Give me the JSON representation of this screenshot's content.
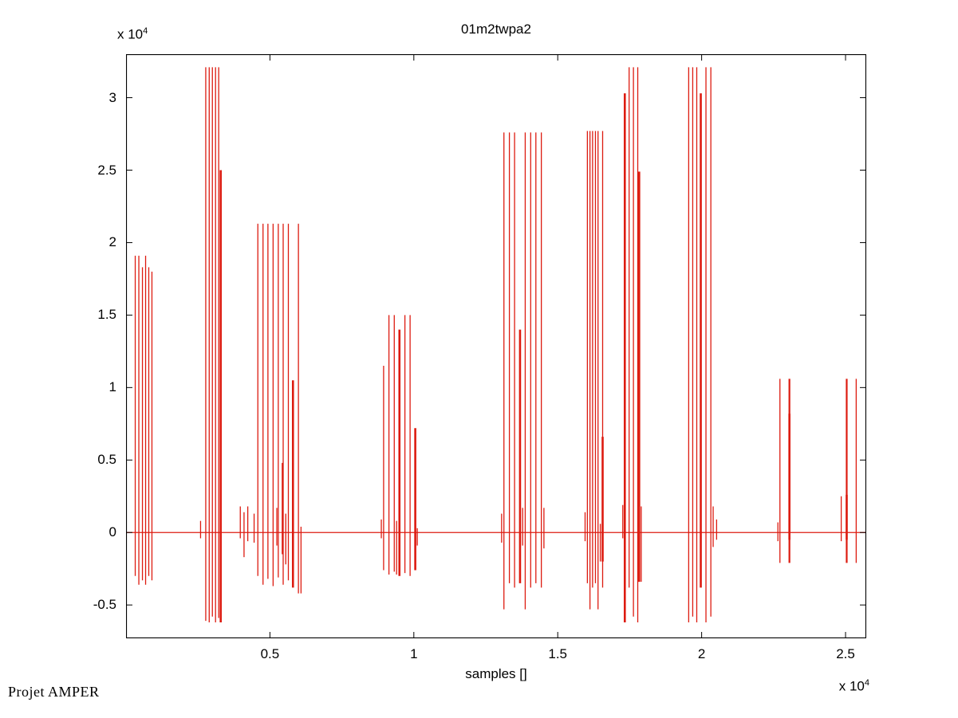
{
  "chart": {
    "title": "01m2twpa2",
    "xlabel": "samples []",
    "x_exp": {
      "prefix": "x 10",
      "exp": "4"
    },
    "y_exp": {
      "prefix": "x 10",
      "exp": "4"
    },
    "watermark": "Projet AMPER"
  },
  "colors": {
    "line": "#dd1b10",
    "axis": "#000000",
    "background": "#ffffff"
  },
  "chart_data": {
    "type": "line",
    "title": "01m2twpa2",
    "xlabel": "samples []",
    "ylabel": "",
    "x_unit_scale": "x 10^4",
    "y_unit_scale": "x 10^4",
    "xlim": [
      0,
      25720
    ],
    "ylim": [
      -7300,
      33000
    ],
    "grid": false,
    "legend": null,
    "x_ticks": [
      5000,
      10000,
      15000,
      20000,
      25000
    ],
    "x_tick_labels": [
      "0.5",
      "1",
      "1.5",
      "2",
      "2.5"
    ],
    "y_ticks": [
      -5000,
      0,
      5000,
      10000,
      15000,
      20000,
      25000,
      30000
    ],
    "y_tick_labels": [
      "-0.5",
      "0",
      "0.5",
      "1",
      "1.5",
      "2",
      "2.5",
      "3"
    ],
    "baseline": 0,
    "bursts": [
      {
        "name": "burst-1",
        "spikes": [
          [
            320,
            19100,
            -3000
          ],
          [
            445,
            19100,
            -3600
          ],
          [
            570,
            18300,
            -3300
          ],
          [
            680,
            19100,
            -3600
          ],
          [
            790,
            18300,
            -3000
          ],
          [
            900,
            18000,
            -3300
          ]
        ]
      },
      {
        "name": "burst-2",
        "spikes": [
          [
            2770,
            32100,
            -6100
          ],
          [
            2890,
            32100,
            -6200
          ],
          [
            3000,
            32100,
            -5800
          ],
          [
            3110,
            32100,
            -6200
          ],
          [
            3220,
            32100,
            -5900
          ],
          [
            3290,
            25000,
            -6200,
            2.6
          ]
        ]
      },
      {
        "name": "burst-3",
        "spikes": [
          [
            4580,
            21300,
            -3000
          ],
          [
            4760,
            21300,
            -3600
          ],
          [
            4930,
            21300,
            -3200
          ],
          [
            5110,
            21300,
            -3700
          ],
          [
            5290,
            21300,
            -3100
          ],
          [
            5460,
            21300,
            -3600
          ],
          [
            5640,
            21300,
            -3300
          ],
          [
            5800,
            10500,
            -3800,
            2.6
          ],
          [
            5990,
            21300,
            -4200
          ]
        ]
      },
      {
        "name": "burst-4",
        "spikes": [
          [
            8950,
            11500,
            -2600
          ],
          [
            9135,
            15000,
            -2900
          ],
          [
            9320,
            15000,
            -2700
          ],
          [
            9500,
            14000,
            -3000,
            2.6
          ],
          [
            9690,
            15000,
            -2800
          ],
          [
            9870,
            15000,
            -3000
          ],
          [
            10050,
            7200,
            -2600,
            2.6
          ]
        ]
      },
      {
        "name": "burst-5",
        "spikes": [
          [
            13130,
            27600,
            -5300
          ],
          [
            13320,
            27600,
            -3500
          ],
          [
            13500,
            27600,
            -3800
          ],
          [
            13690,
            14000,
            -3500,
            2.6
          ],
          [
            13870,
            27600,
            -5300
          ],
          [
            14060,
            27600,
            -3800
          ],
          [
            14240,
            27600,
            -3500
          ],
          [
            14430,
            27600,
            -3800
          ]
        ]
      },
      {
        "name": "burst-6",
        "spikes": [
          [
            16030,
            27700,
            -3500
          ],
          [
            16120,
            27700,
            -5300
          ],
          [
            16210,
            27700,
            -3800
          ],
          [
            16310,
            27700,
            -3500
          ],
          [
            16400,
            27700,
            -5300
          ],
          [
            16560,
            27700,
            -3800
          ]
        ]
      },
      {
        "name": "burst-7",
        "spikes": [
          [
            17330,
            30300,
            -6200,
            2.6
          ],
          [
            17480,
            32100,
            -3800
          ],
          [
            17630,
            32100,
            -5800
          ],
          [
            17780,
            32100,
            -6200
          ],
          [
            17830,
            24900,
            -3400,
            2.6
          ]
        ]
      },
      {
        "name": "burst-8",
        "spikes": [
          [
            19550,
            32100,
            -6200
          ],
          [
            19690,
            32100,
            -5800
          ],
          [
            19830,
            32100,
            -6200
          ],
          [
            19970,
            30300,
            -3800,
            2.6
          ],
          [
            20150,
            32100,
            -6200
          ],
          [
            20320,
            32100,
            -5800
          ]
        ]
      },
      {
        "name": "burst-9",
        "spikes": [
          [
            22720,
            10600,
            -2100
          ],
          [
            23050,
            10600,
            -2100,
            2.2
          ]
        ]
      },
      {
        "name": "burst-10",
        "spikes": [
          [
            25040,
            10600,
            -2100,
            2.2
          ],
          [
            25370,
            10600,
            -2100
          ]
        ]
      }
    ],
    "base_spikes": [
      [
        2590,
        800,
        -400
      ],
      [
        3970,
        1800,
        -400
      ],
      [
        4100,
        1400,
        -1700
      ],
      [
        4230,
        1800,
        -600
      ],
      [
        4450,
        1300,
        -700
      ],
      [
        5240,
        1700,
        -900
      ],
      [
        5440,
        4800,
        -1500,
        2.2
      ],
      [
        5550,
        1300,
        -2200
      ],
      [
        6080,
        400,
        -4200
      ],
      [
        8870,
        900,
        -400
      ],
      [
        9400,
        800,
        -2900
      ],
      [
        10120,
        300,
        -900
      ],
      [
        13050,
        1300,
        -700
      ],
      [
        13780,
        1700,
        -900
      ],
      [
        14520,
        1700,
        -1100
      ],
      [
        15950,
        1400,
        -600
      ],
      [
        16480,
        600,
        -2000
      ],
      [
        16560,
        6600,
        -2000,
        2.6
      ],
      [
        17260,
        1900,
        -400
      ],
      [
        17900,
        1800,
        -3400
      ],
      [
        20400,
        1800,
        -1000
      ],
      [
        20520,
        900,
        -500
      ],
      [
        22650,
        700,
        -600
      ],
      [
        23050,
        8200,
        -500,
        2.6
      ],
      [
        24850,
        2500,
        -600
      ],
      [
        25040,
        2600,
        -500,
        2.6
      ]
    ]
  }
}
